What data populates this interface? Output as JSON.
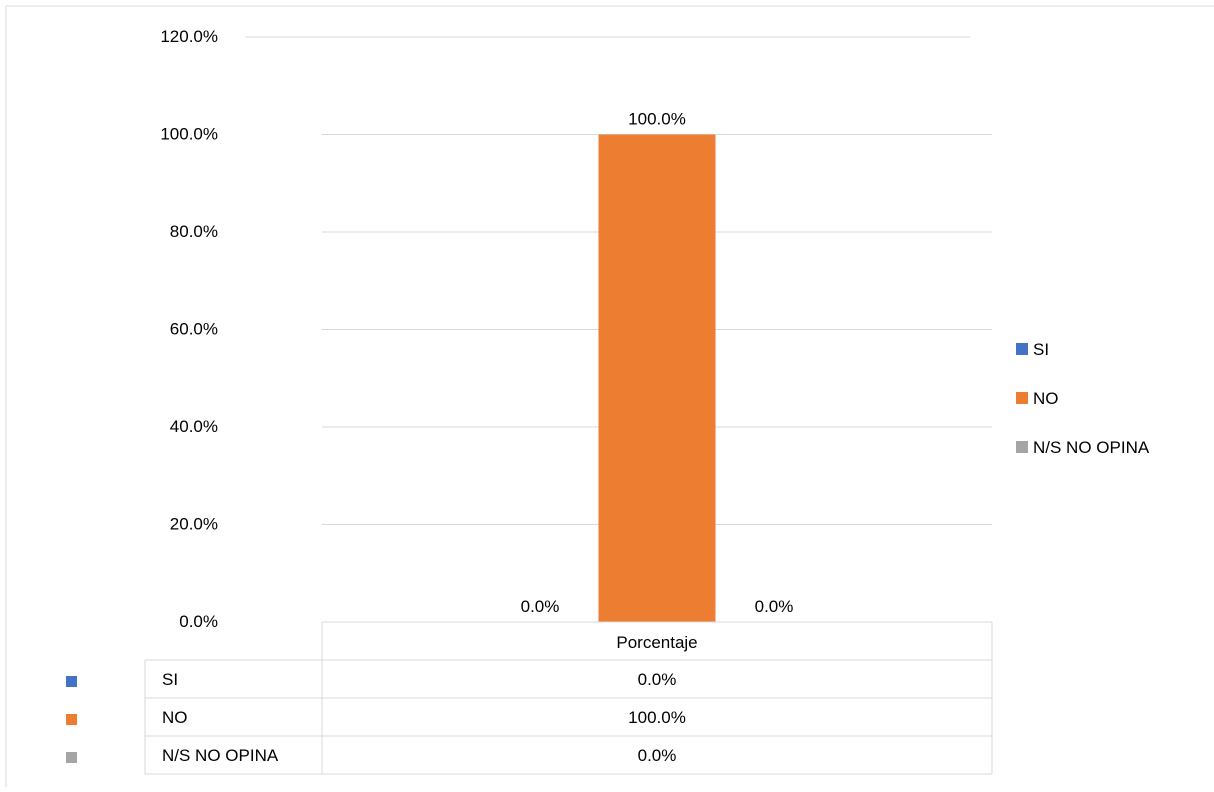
{
  "chart_data": {
    "type": "bar",
    "categories": [
      "Porcentaje"
    ],
    "series": [
      {
        "name": "SI",
        "values": [
          0.0
        ],
        "color": "#4472C4",
        "value_label": "0.0%"
      },
      {
        "name": "NO",
        "values": [
          100.0
        ],
        "color": "#ED7D31",
        "value_label": "100.0%"
      },
      {
        "name": "N/S NO OPINA",
        "values": [
          0.0
        ],
        "color": "#A5A5A5",
        "value_label": "0.0%"
      }
    ],
    "yticks": [
      "0.0%",
      "20.0%",
      "40.0%",
      "60.0%",
      "80.0%",
      "100.0%",
      "120.0%"
    ],
    "ylim": [
      0,
      120
    ],
    "grid": true,
    "legend_position": "right",
    "data_table": true
  }
}
